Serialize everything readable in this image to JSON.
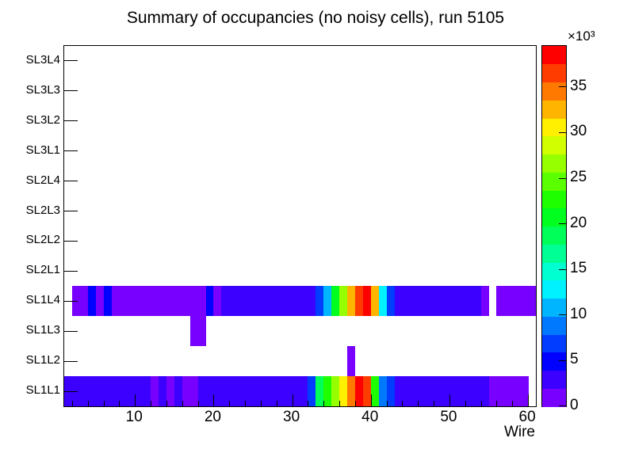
{
  "title": "Summary of occupancies (no noisy cells), run 5105",
  "chart_data": {
    "type": "heatmap",
    "title": "Summary of occupancies (no noisy cells), run 5105",
    "xlabel": "Wire",
    "x_range": [
      1,
      61
    ],
    "x_ticks": [
      10,
      20,
      30,
      40,
      50,
      60
    ],
    "x_minor_tick_step": 2,
    "y_categories_bottom_to_top": [
      "SL1L1",
      "SL1L2",
      "SL1L3",
      "SL1L4",
      "SL2L1",
      "SL2L2",
      "SL2L3",
      "SL2L4",
      "SL3L1",
      "SL3L2",
      "SL3L3",
      "SL3L4"
    ],
    "z_max": 39500,
    "z_ticks_thousands": [
      0,
      5,
      10,
      15,
      20,
      25,
      30,
      35
    ],
    "z_scale_label": "×10³",
    "grid": false,
    "background": "#ffffff",
    "frame_border_color": "#000000",
    "palette": [
      "#7700ff",
      "#3b00ff",
      "#0001ff",
      "#003dff",
      "#0079ff",
      "#00b5ff",
      "#00f1ff",
      "#00ffd1",
      "#00ff95",
      "#00ff59",
      "#00ff1e",
      "#1eff00",
      "#5aff00",
      "#96ff00",
      "#d2ff00",
      "#fff000",
      "#ffb400",
      "#ff7800",
      "#ff3c00",
      "#ff0000"
    ],
    "empty_rows": [
      "SL2L1",
      "SL2L2",
      "SL2L3",
      "SL2L4",
      "SL3L1",
      "SL3L2",
      "SL3L3",
      "SL3L4"
    ],
    "values_by_row": {
      "SL1L1": [
        3000,
        3000,
        3000,
        3000,
        3000,
        3000,
        3000,
        3000,
        3000,
        3000,
        3000,
        1600,
        3000,
        1600,
        3000,
        1100,
        1100,
        3000,
        3000,
        3000,
        3000,
        3000,
        3000,
        3000,
        3000,
        3000,
        3000,
        3000,
        3000,
        3000,
        3000,
        6800,
        19000,
        23000,
        27000,
        30500,
        34500,
        38800,
        36500,
        23000,
        9500,
        6800,
        3000,
        3000,
        3000,
        3000,
        3000,
        3000,
        3000,
        3000,
        3000,
        3000,
        3000,
        3000,
        1200,
        1200,
        1200,
        1200,
        1200,
        0
      ],
      "SL1L2": [
        0,
        0,
        0,
        0,
        0,
        0,
        0,
        0,
        0,
        0,
        0,
        0,
        0,
        0,
        0,
        0,
        0,
        0,
        0,
        0,
        0,
        0,
        0,
        0,
        0,
        0,
        0,
        0,
        0,
        0,
        0,
        0,
        0,
        0,
        0,
        0,
        1500,
        0,
        0,
        0,
        0,
        0,
        0,
        0,
        0,
        0,
        0,
        0,
        0,
        0,
        0,
        0,
        0,
        0,
        0,
        0,
        0,
        0,
        0,
        0
      ],
      "SL1L3": [
        0,
        0,
        0,
        0,
        0,
        0,
        0,
        0,
        0,
        0,
        0,
        0,
        0,
        0,
        0,
        0,
        1200,
        1200,
        0,
        0,
        0,
        0,
        0,
        0,
        0,
        0,
        0,
        0,
        0,
        0,
        0,
        0,
        0,
        0,
        0,
        0,
        0,
        0,
        0,
        0,
        0,
        0,
        0,
        0,
        0,
        0,
        0,
        0,
        0,
        0,
        0,
        0,
        0,
        0,
        0,
        0,
        0,
        0,
        0,
        0
      ],
      "SL1L4": [
        0,
        1200,
        1200,
        5000,
        1200,
        5000,
        1200,
        1200,
        1200,
        1200,
        1200,
        1200,
        1200,
        1200,
        1200,
        1200,
        1200,
        1200,
        5000,
        1200,
        3000,
        3000,
        3000,
        3000,
        3000,
        3000,
        3000,
        3000,
        3000,
        3000,
        3000,
        3000,
        6800,
        10500,
        21000,
        27000,
        32500,
        36500,
        38800,
        33500,
        13000,
        6800,
        3000,
        3000,
        3000,
        3000,
        3000,
        3000,
        3000,
        3000,
        3000,
        3000,
        3000,
        1200,
        0,
        1200,
        1200,
        1200,
        1200,
        1200
      ]
    }
  }
}
